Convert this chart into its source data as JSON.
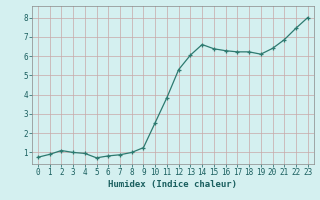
{
  "x": [
    0,
    1,
    2,
    3,
    4,
    5,
    6,
    7,
    8,
    9,
    10,
    11,
    12,
    13,
    14,
    15,
    16,
    17,
    18,
    19,
    20,
    21,
    22,
    23
  ],
  "y": [
    0.75,
    0.9,
    1.1,
    1.0,
    0.95,
    0.72,
    0.82,
    0.88,
    1.0,
    1.25,
    2.55,
    3.85,
    5.3,
    6.05,
    6.6,
    6.38,
    6.28,
    6.22,
    6.22,
    6.1,
    6.4,
    6.85,
    7.45,
    8.0
  ],
  "line_color": "#2d7a70",
  "marker": "+",
  "marker_size": 3,
  "marker_lw": 0.9,
  "line_width": 0.9,
  "bg_color": "#d4f0f0",
  "grid_color": "#b8d8d8",
  "xlabel": "Humidex (Indice chaleur)",
  "xlabel_color": "#1a5f5f",
  "xlabel_fontsize": 6.5,
  "tick_color": "#1a5f5f",
  "tick_fontsize": 5.5,
  "ylim": [
    0.4,
    8.6
  ],
  "xlim": [
    -0.5,
    23.5
  ],
  "yticks": [
    1,
    2,
    3,
    4,
    5,
    6,
    7,
    8
  ],
  "xticks": [
    0,
    1,
    2,
    3,
    4,
    5,
    6,
    7,
    8,
    9,
    10,
    11,
    12,
    13,
    14,
    15,
    16,
    17,
    18,
    19,
    20,
    21,
    22,
    23
  ]
}
